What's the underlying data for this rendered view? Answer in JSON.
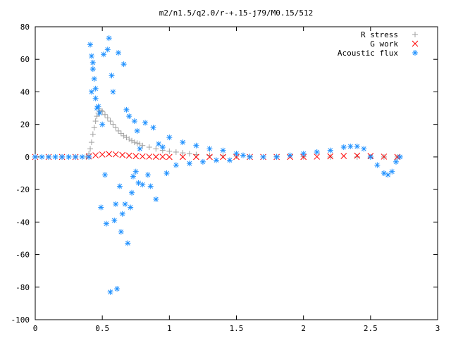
{
  "chart_data": {
    "type": "scatter",
    "title": "m2/n1.5/q2.0/r-+.15-j79/M0.15/512",
    "xlim": [
      0,
      3
    ],
    "ylim": [
      -100,
      80
    ],
    "xticks": [
      0,
      0.5,
      1,
      1.5,
      2,
      2.5,
      3
    ],
    "xtick_labels": [
      "0",
      "0.5",
      "1",
      "1.5",
      "2",
      "2.5",
      "3"
    ],
    "yticks": [
      -100,
      -80,
      -60,
      -40,
      -20,
      0,
      20,
      40,
      60,
      80
    ],
    "ytick_labels": [
      "-100",
      "-80",
      "-60",
      "-40",
      "-20",
      "0",
      "20",
      "40",
      "60",
      "80"
    ],
    "grid": false,
    "legend_position": "top-right",
    "series": [
      {
        "name": "R stress",
        "color": "#a0a0a0",
        "marker": "plus",
        "x": [
          0,
          0.1,
          0.2,
          0.3,
          0.38,
          0.4,
          0.41,
          0.42,
          0.43,
          0.44,
          0.45,
          0.46,
          0.47,
          0.48,
          0.49,
          0.5,
          0.52,
          0.54,
          0.56,
          0.58,
          0.6,
          0.62,
          0.64,
          0.66,
          0.68,
          0.7,
          0.72,
          0.74,
          0.76,
          0.78,
          0.8,
          0.85,
          0.9,
          0.95,
          1.0,
          1.05,
          1.1,
          1.15,
          1.2,
          1.3,
          1.4,
          1.5,
          1.6,
          1.8,
          2.0,
          2.2,
          2.4,
          2.6,
          2.7
        ],
        "y": [
          0,
          0,
          0,
          0,
          0,
          2,
          5,
          9,
          14,
          18,
          22,
          25,
          27,
          28,
          28.5,
          28,
          26,
          24,
          22,
          20,
          18,
          16,
          14.5,
          13,
          12,
          11,
          10,
          9,
          8.5,
          8,
          7,
          6,
          5,
          4,
          3.5,
          3,
          2.5,
          2,
          1.5,
          1,
          0.8,
          0.5,
          0.3,
          0.2,
          0.1,
          0,
          0,
          0,
          0
        ]
      },
      {
        "name": "G work",
        "color": "#ff0000",
        "marker": "cross",
        "x": [
          0,
          0.1,
          0.2,
          0.3,
          0.4,
          0.45,
          0.5,
          0.55,
          0.6,
          0.65,
          0.7,
          0.75,
          0.8,
          0.85,
          0.9,
          0.95,
          1.0,
          1.1,
          1.2,
          1.3,
          1.4,
          1.5,
          1.6,
          1.7,
          1.8,
          1.9,
          2.0,
          2.1,
          2.2,
          2.3,
          2.4,
          2.5,
          2.6,
          2.7
        ],
        "y": [
          0,
          0,
          0,
          0,
          0.3,
          1,
          1.5,
          1.8,
          1.6,
          1.2,
          0.8,
          0.5,
          0.3,
          0.2,
          0.1,
          0.1,
          0,
          0,
          0,
          0,
          0,
          0,
          0,
          0,
          0,
          0,
          0,
          0.2,
          0.4,
          0.6,
          0.8,
          0.6,
          0.2,
          0
        ]
      },
      {
        "name": "Acoustic flux",
        "color": "#1e90ff",
        "marker": "star",
        "x": [
          0,
          0.05,
          0.1,
          0.15,
          0.2,
          0.25,
          0.3,
          0.35,
          0.4,
          0.41,
          0.42,
          0.42,
          0.43,
          0.43,
          0.44,
          0.45,
          0.45,
          0.46,
          0.47,
          0.48,
          0.49,
          0.5,
          0.51,
          0.52,
          0.53,
          0.54,
          0.55,
          0.56,
          0.57,
          0.58,
          0.59,
          0.6,
          0.61,
          0.62,
          0.63,
          0.64,
          0.65,
          0.66,
          0.67,
          0.68,
          0.69,
          0.7,
          0.71,
          0.72,
          0.73,
          0.74,
          0.75,
          0.76,
          0.77,
          0.78,
          0.8,
          0.82,
          0.84,
          0.86,
          0.88,
          0.9,
          0.92,
          0.95,
          0.98,
          1.0,
          1.05,
          1.1,
          1.15,
          1.2,
          1.25,
          1.3,
          1.35,
          1.4,
          1.45,
          1.5,
          1.55,
          1.6,
          1.7,
          1.8,
          1.9,
          2.0,
          2.1,
          2.2,
          2.3,
          2.35,
          2.4,
          2.45,
          2.5,
          2.55,
          2.6,
          2.63,
          2.66,
          2.69,
          2.72
        ],
        "y": [
          0,
          0,
          0,
          0,
          0,
          0,
          0,
          0,
          0,
          69,
          62,
          40,
          58,
          54,
          48,
          42,
          36,
          30,
          31,
          27,
          -31,
          20,
          63,
          -11,
          -41,
          66,
          73,
          -83,
          50,
          40,
          -39,
          -29,
          -81,
          64,
          -18,
          -46,
          -35,
          57,
          -29,
          29,
          -53,
          25,
          -31,
          -22,
          -12,
          22,
          -9,
          16,
          -16,
          5,
          -17,
          21,
          -11,
          -18,
          18,
          -26,
          8,
          6,
          -10,
          12,
          -5,
          9,
          -4,
          7,
          -3,
          5,
          -2,
          4,
          -2,
          2,
          1,
          0,
          0,
          0,
          1,
          2,
          3,
          4,
          6,
          6.5,
          6.5,
          5,
          0,
          -5,
          -10,
          -11,
          -9,
          -3,
          0
        ]
      }
    ]
  }
}
